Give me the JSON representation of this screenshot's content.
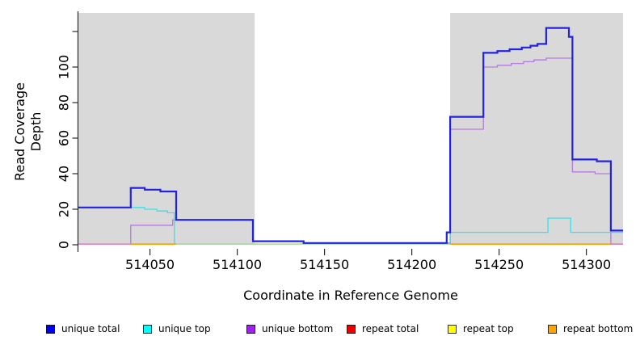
{
  "y_axis": {
    "label": "Read Coverage Depth",
    "ticks": [
      {
        "v": 0,
        "label": "0"
      },
      {
        "v": 20,
        "label": "20"
      },
      {
        "v": 40,
        "label": "40"
      },
      {
        "v": 60,
        "label": "60"
      },
      {
        "v": 80,
        "label": "80"
      },
      {
        "v": 100,
        "label": "100"
      },
      {
        "v": 120,
        "label": ""
      }
    ]
  },
  "x_axis": {
    "label": "Coordinate in Reference Genome",
    "ticks": [
      {
        "v": 514050,
        "label": "514050"
      },
      {
        "v": 514100,
        "label": "514100"
      },
      {
        "v": 514150,
        "label": "514150"
      },
      {
        "v": 514200,
        "label": "514200"
      },
      {
        "v": 514250,
        "label": "514250"
      },
      {
        "v": 514300,
        "label": "514300"
      }
    ]
  },
  "legend": {
    "items": [
      {
        "label": "unique total",
        "color": "#0000EE"
      },
      {
        "label": "unique top",
        "color": "#00FFFF"
      },
      {
        "label": "unique bottom",
        "color": "#A020F0"
      },
      {
        "label": "repeat total",
        "color": "#EE0000"
      },
      {
        "label": "repeat top",
        "color": "#FFFF00"
      },
      {
        "label": "repeat bottom",
        "color": "#FFA500"
      }
    ]
  },
  "chart_data": {
    "type": "line",
    "subtype": "step-coverage",
    "title": "",
    "xlabel": "Coordinate in Reference Genome",
    "ylabel": "Read Coverage Depth",
    "xlim": [
      514009,
      514321
    ],
    "ylim": [
      0,
      124
    ],
    "grid": false,
    "legend_position": "bottom",
    "background_regions": [
      {
        "name": "repeat-region-left",
        "from": 514009,
        "to": 514110,
        "color": "#D9D9D9"
      },
      {
        "name": "repeat-region-right",
        "from": 514222,
        "to": 514321,
        "color": "#D9D9D9"
      }
    ],
    "series": [
      {
        "name": "unique total",
        "color": "#2222E0",
        "width": 2.2,
        "segments": [
          {
            "points": [
              [
                514009,
                21
              ],
              [
                514039,
                32
              ],
              [
                514047,
                31
              ],
              [
                514056,
                30
              ],
              [
                514065,
                14
              ],
              [
                514109,
                2
              ],
              [
                514138,
                1
              ],
              [
                514220,
                7
              ],
              [
                514222,
                72
              ],
              [
                514241,
                108
              ],
              [
                514249,
                109
              ],
              [
                514256,
                110
              ],
              [
                514263,
                111
              ],
              [
                514268,
                112
              ],
              [
                514272,
                113
              ],
              [
                514277,
                122
              ],
              [
                514290,
                117
              ],
              [
                514292,
                48
              ],
              [
                514306,
                47
              ],
              [
                514314,
                8
              ]
            ],
            "end": 514321
          }
        ]
      },
      {
        "name": "unique top",
        "color": "#40DDE8",
        "width": 1.3,
        "segments": [
          {
            "points": [
              [
                514009,
                21
              ],
              [
                514047,
                20
              ],
              [
                514054,
                19
              ],
              [
                514060,
                18
              ],
              [
                514064,
                0.4
              ]
            ],
            "end": null
          },
          {
            "points": [
              [
                514222,
                0.4
              ],
              [
                514222,
                7
              ],
              [
                514278,
                15
              ],
              [
                514291,
                7
              ]
            ],
            "end": 514321
          }
        ]
      },
      {
        "name": "unique bottom",
        "color": "#B47BDC",
        "width": 1.3,
        "segments": [
          {
            "points": [
              [
                514039,
                0.4
              ],
              [
                514039,
                11
              ],
              [
                514063,
                14
              ],
              [
                514109,
                2
              ],
              [
                514138,
                1
              ],
              [
                514222,
                65
              ],
              [
                514241,
                100
              ],
              [
                514249,
                101
              ],
              [
                514257,
                102
              ],
              [
                514264,
                103
              ],
              [
                514270,
                104
              ],
              [
                514277,
                105
              ],
              [
                514292,
                41
              ],
              [
                514305,
                40
              ],
              [
                514314,
                0.4
              ]
            ],
            "end": null
          }
        ]
      },
      {
        "name": "repeat total",
        "color": "#EE0000",
        "width": 1.3,
        "segments": []
      },
      {
        "name": "repeat top",
        "color": "#FFFF00",
        "width": 1.3,
        "segments": []
      },
      {
        "name": "repeat bottom",
        "color": "#FFA500",
        "width": 1.8,
        "segments": [
          {
            "points": [
              [
                514039,
                0.4
              ]
            ],
            "end": 514065
          },
          {
            "points": [
              [
                514222,
                0.4
              ]
            ],
            "end": 514314
          }
        ]
      }
    ],
    "zero_line_blends": [
      {
        "name": "baseline-blend-pink-left",
        "from": 514009,
        "to": 514039,
        "value": 0.4,
        "color": "#EA7DB9"
      },
      {
        "name": "baseline-blend-green-mid",
        "from": 514064,
        "to": 514222,
        "value": 0.4,
        "color": "#A6D7A0"
      },
      {
        "name": "baseline-blend-pink-right",
        "from": 514314,
        "to": 514321,
        "value": 0.4,
        "color": "#D873B0"
      }
    ]
  }
}
